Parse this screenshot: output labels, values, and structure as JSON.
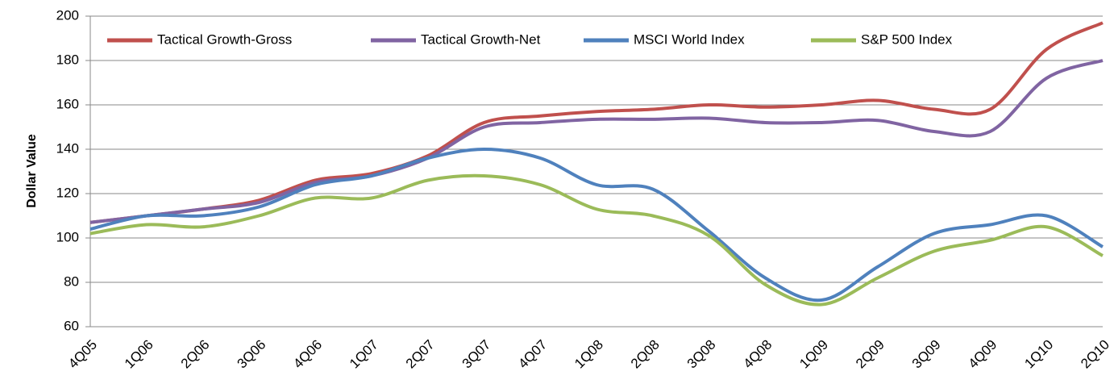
{
  "chart_data": {
    "type": "line",
    "y_label": "Dollar Value",
    "categories": [
      "4Q05",
      "1Q06",
      "2Q06",
      "3Q06",
      "4Q06",
      "1Q07",
      "2Q07",
      "3Q07",
      "4Q07",
      "1Q08",
      "2Q08",
      "3Q08",
      "4Q08",
      "1Q09",
      "2Q09",
      "3Q09",
      "4Q09",
      "1Q10",
      "2Q10"
    ],
    "series": [
      {
        "name": "Tactical Growth-Gross",
        "color": "#c0504d",
        "values": [
          107,
          110,
          113,
          117,
          126,
          129,
          137,
          152,
          155,
          157,
          158,
          160,
          159,
          160,
          162,
          158,
          158,
          185,
          197
        ]
      },
      {
        "name": "Tactical Growth-Net",
        "color": "#8064a2",
        "values": [
          107,
          110,
          113,
          116,
          125,
          128,
          136,
          150,
          152,
          153.5,
          153.5,
          154,
          152,
          152,
          153,
          148,
          148,
          172,
          180
        ]
      },
      {
        "name": "MSCI World Index",
        "color": "#4f81bd",
        "values": [
          104,
          110,
          110,
          114,
          124,
          128,
          136,
          140,
          136,
          124,
          122,
          103,
          82,
          72,
          87,
          102,
          106,
          110,
          96
        ]
      },
      {
        "name": "S&P 500 Index",
        "color": "#9bbb59",
        "values": [
          102,
          106,
          105,
          110,
          118,
          118,
          126,
          128,
          124,
          113,
          110,
          101,
          79,
          70,
          82,
          94,
          99,
          105,
          92
        ]
      }
    ],
    "ylim": [
      60,
      200
    ],
    "yticks": [
      60,
      80,
      100,
      120,
      140,
      160,
      180,
      200
    ],
    "grid": true
  }
}
